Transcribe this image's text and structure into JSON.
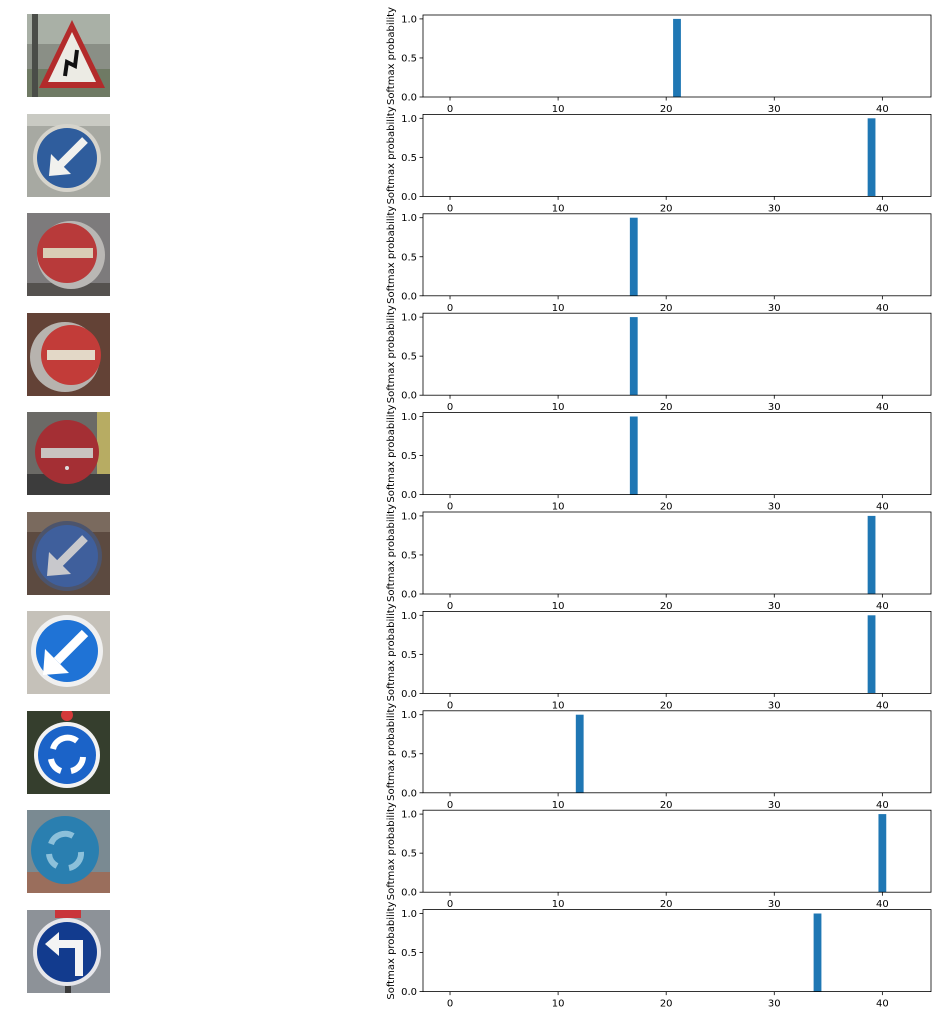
{
  "colors": {
    "bar": "#1f77b4",
    "axis": "#000000"
  },
  "signs": [
    {
      "icon": "road-sign-double-bend-warning"
    },
    {
      "icon": "road-sign-keep-left-arrow"
    },
    {
      "icon": "road-sign-no-entry"
    },
    {
      "icon": "road-sign-no-entry"
    },
    {
      "icon": "road-sign-no-entry"
    },
    {
      "icon": "road-sign-keep-left-arrow"
    },
    {
      "icon": "road-sign-keep-left-arrow"
    },
    {
      "icon": "road-sign-roundabout"
    },
    {
      "icon": "road-sign-roundabout"
    },
    {
      "icon": "road-sign-turn-left-ahead"
    }
  ],
  "chart_data": [
    {
      "type": "bar",
      "xlabel": "",
      "ylabel": "Softmax probability",
      "xlim": [
        -2.5,
        44.5
      ],
      "ylim": [
        0,
        1.05
      ],
      "xticks": [
        0,
        10,
        20,
        30,
        40
      ],
      "yticks": [
        "0.0",
        "0.5",
        "1.0"
      ],
      "bars": [
        {
          "x": 21,
          "y": 1.0
        }
      ]
    },
    {
      "type": "bar",
      "xlabel": "",
      "ylabel": "Softmax probability",
      "xlim": [
        -2.5,
        44.5
      ],
      "ylim": [
        0,
        1.05
      ],
      "xticks": [
        0,
        10,
        20,
        30,
        40
      ],
      "yticks": [
        "0.0",
        "0.5",
        "1.0"
      ],
      "bars": [
        {
          "x": 39,
          "y": 1.0
        }
      ]
    },
    {
      "type": "bar",
      "xlabel": "",
      "ylabel": "Softmax probability",
      "xlim": [
        -2.5,
        44.5
      ],
      "ylim": [
        0,
        1.05
      ],
      "xticks": [
        0,
        10,
        20,
        30,
        40
      ],
      "yticks": [
        "0.0",
        "0.5",
        "1.0"
      ],
      "bars": [
        {
          "x": 17,
          "y": 1.0
        }
      ]
    },
    {
      "type": "bar",
      "xlabel": "",
      "ylabel": "Softmax probability",
      "xlim": [
        -2.5,
        44.5
      ],
      "ylim": [
        0,
        1.05
      ],
      "xticks": [
        0,
        10,
        20,
        30,
        40
      ],
      "yticks": [
        "0.0",
        "0.5",
        "1.0"
      ],
      "bars": [
        {
          "x": 17,
          "y": 1.0
        }
      ]
    },
    {
      "type": "bar",
      "xlabel": "",
      "ylabel": "Softmax probability",
      "xlim": [
        -2.5,
        44.5
      ],
      "ylim": [
        0,
        1.05
      ],
      "xticks": [
        0,
        10,
        20,
        30,
        40
      ],
      "yticks": [
        "0.0",
        "0.5",
        "1.0"
      ],
      "bars": [
        {
          "x": 17,
          "y": 1.0
        }
      ]
    },
    {
      "type": "bar",
      "xlabel": "",
      "ylabel": "Softmax probability",
      "xlim": [
        -2.5,
        44.5
      ],
      "ylim": [
        0,
        1.05
      ],
      "xticks": [
        0,
        10,
        20,
        30,
        40
      ],
      "yticks": [
        "0.0",
        "0.5",
        "1.0"
      ],
      "bars": [
        {
          "x": 39,
          "y": 1.0
        }
      ]
    },
    {
      "type": "bar",
      "xlabel": "",
      "ylabel": "Softmax probability",
      "xlim": [
        -2.5,
        44.5
      ],
      "ylim": [
        0,
        1.05
      ],
      "xticks": [
        0,
        10,
        20,
        30,
        40
      ],
      "yticks": [
        "0.0",
        "0.5",
        "1.0"
      ],
      "bars": [
        {
          "x": 39,
          "y": 1.0
        }
      ]
    },
    {
      "type": "bar",
      "xlabel": "",
      "ylabel": "Softmax probability",
      "xlim": [
        -2.5,
        44.5
      ],
      "ylim": [
        0,
        1.05
      ],
      "xticks": [
        0,
        10,
        20,
        30,
        40
      ],
      "yticks": [
        "0.0",
        "0.5",
        "1.0"
      ],
      "bars": [
        {
          "x": 12,
          "y": 1.0
        }
      ]
    },
    {
      "type": "bar",
      "xlabel": "",
      "ylabel": "Softmax probability",
      "xlim": [
        -2.5,
        44.5
      ],
      "ylim": [
        0,
        1.05
      ],
      "xticks": [
        0,
        10,
        20,
        30,
        40
      ],
      "yticks": [
        "0.0",
        "0.5",
        "1.0"
      ],
      "bars": [
        {
          "x": 40,
          "y": 1.0
        }
      ]
    },
    {
      "type": "bar",
      "xlabel": "",
      "ylabel": "Softmax probability",
      "xlim": [
        -2.5,
        44.5
      ],
      "ylim": [
        0,
        1.05
      ],
      "xticks": [
        0,
        10,
        20,
        30,
        40
      ],
      "yticks": [
        "0.0",
        "0.5",
        "1.0"
      ],
      "bars": [
        {
          "x": 34,
          "y": 1.0
        }
      ]
    }
  ]
}
